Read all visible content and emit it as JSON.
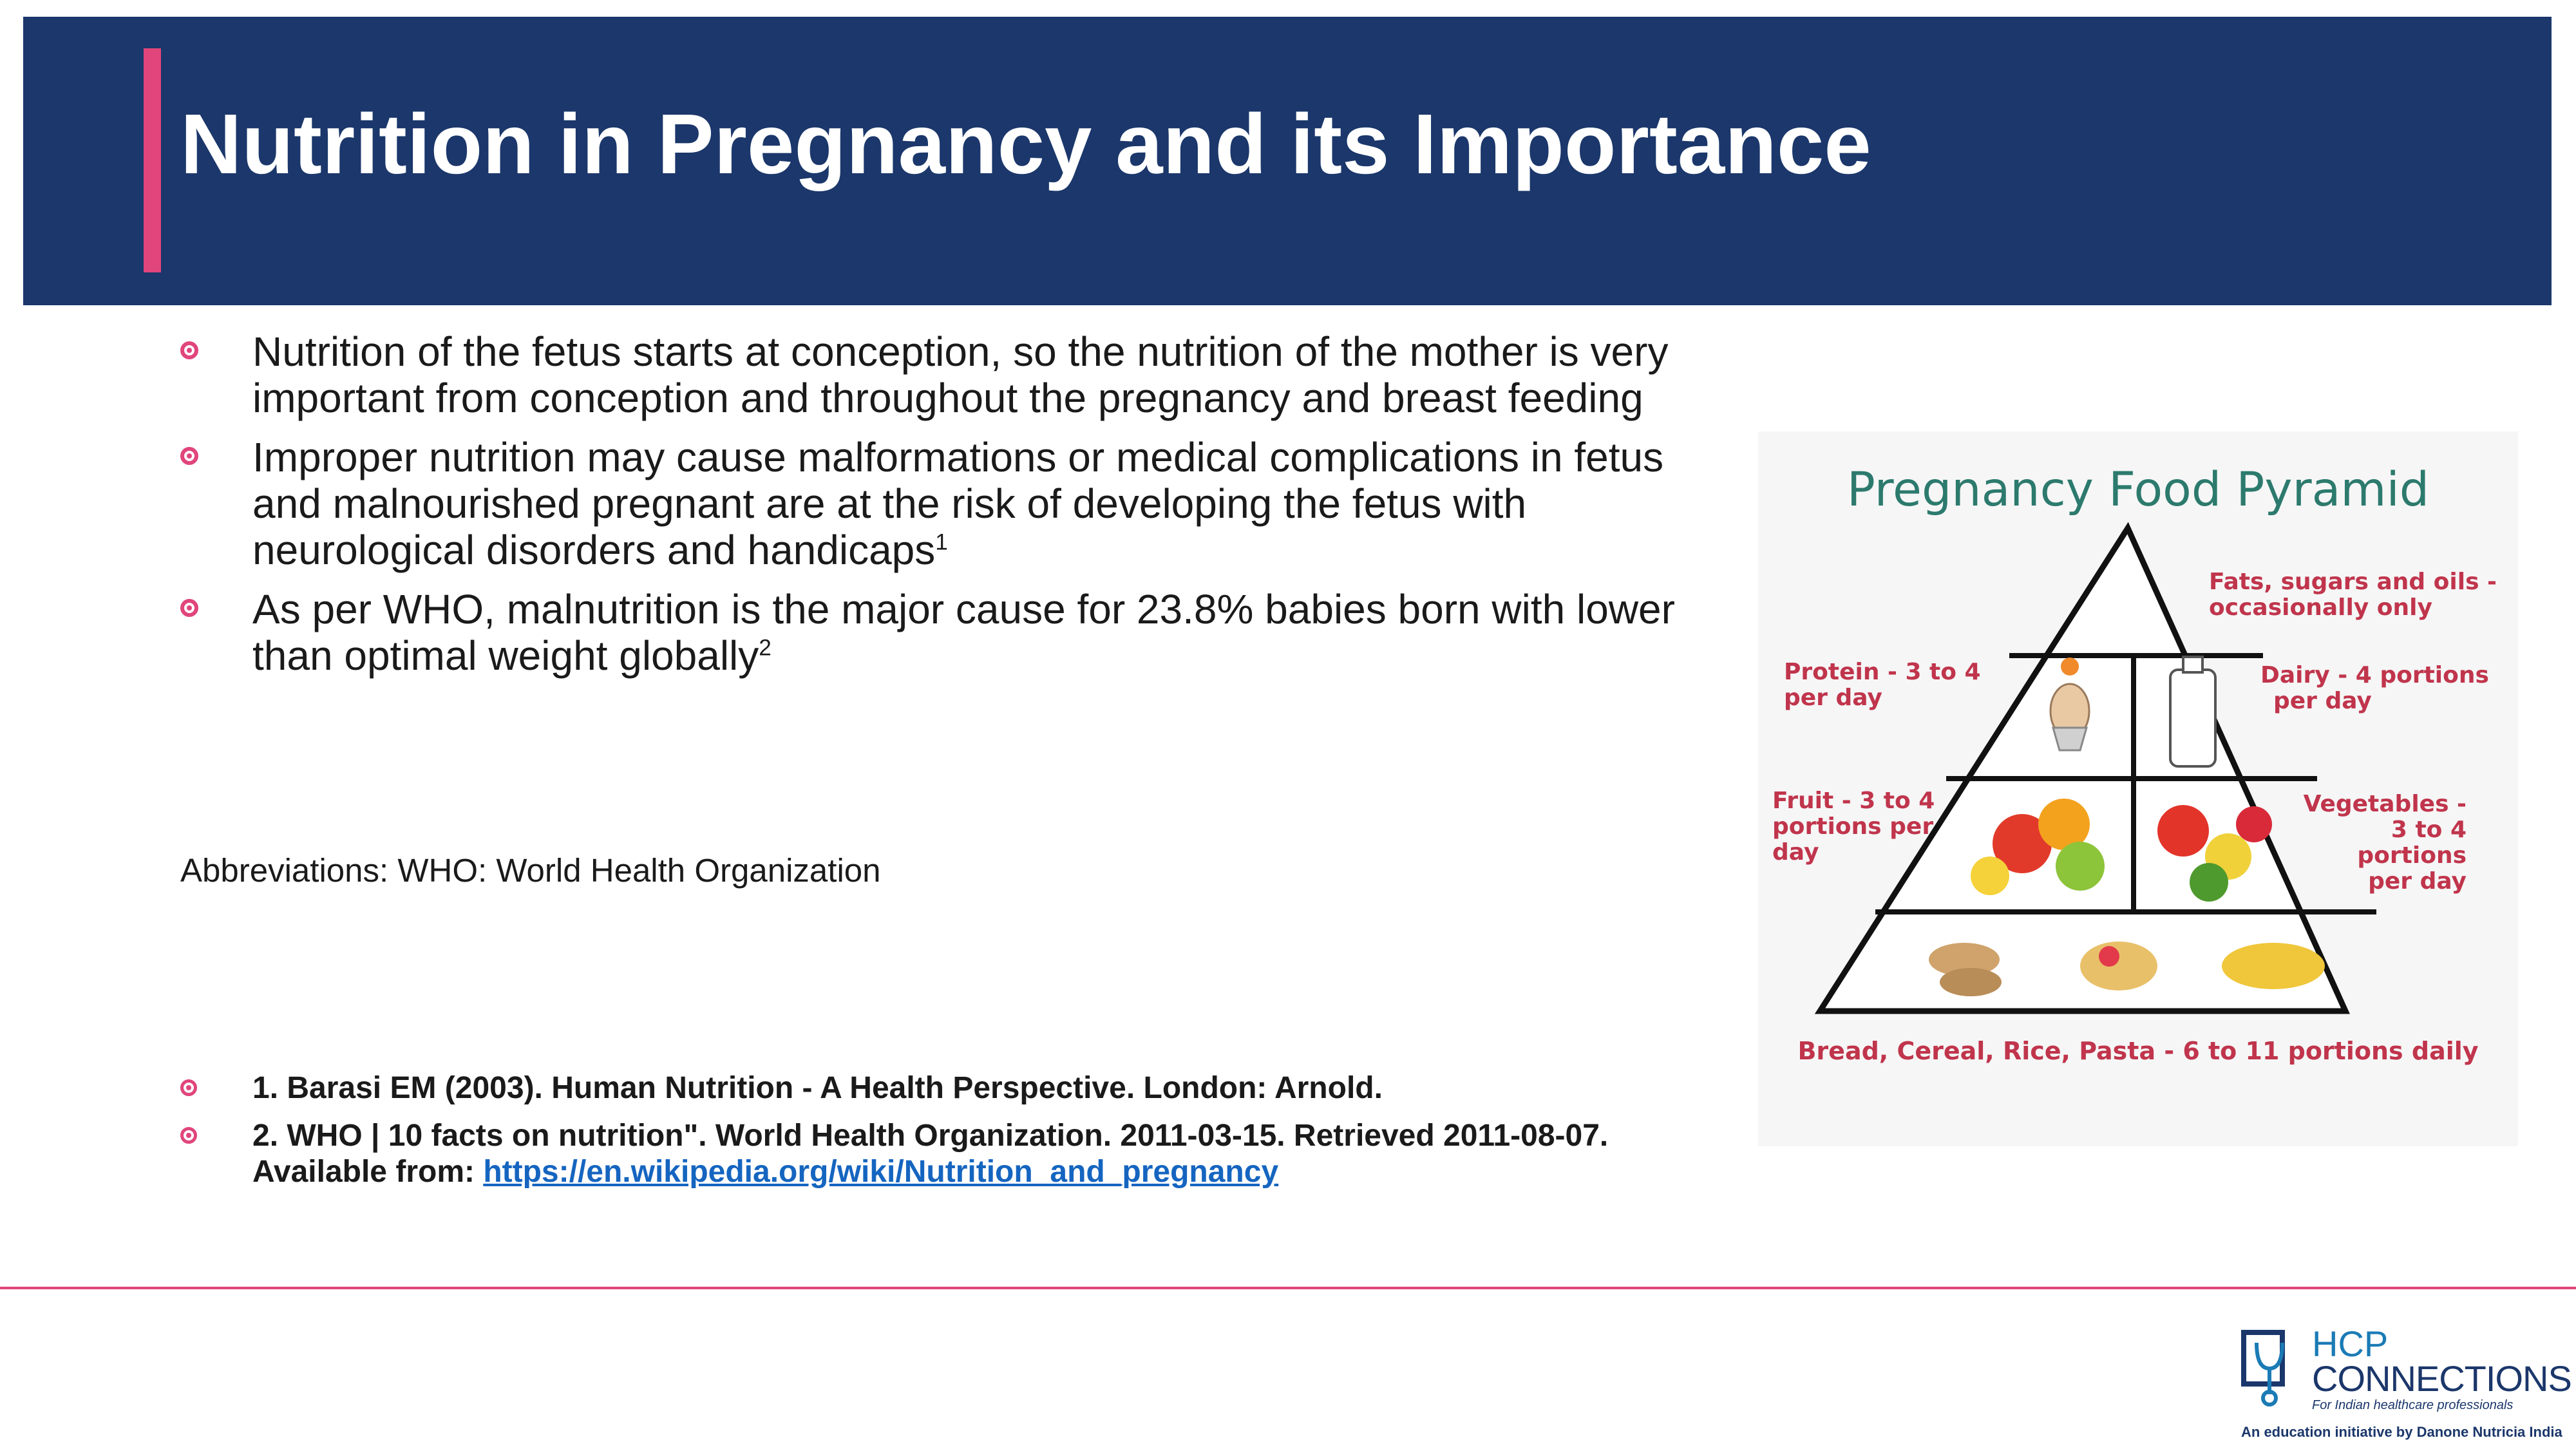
{
  "slide": {
    "title": "Nutrition in Pregnancy and its Importance",
    "bullets": [
      {
        "text": "Nutrition of the fetus starts at conception, so the nutrition of the mother is very important from conception and throughout the pregnancy and breast feeding",
        "sup": ""
      },
      {
        "text": "Improper nutrition may cause malformations or medical complications in fetus and malnourished pregnant are at the risk of developing the fetus with neurological disorders and handicaps",
        "sup": "1"
      },
      {
        "text": "As per WHO, malnutrition is the major cause for 23.8% babies born with lower than optimal weight globally",
        "sup": "2"
      }
    ],
    "abbreviations": "Abbreviations: WHO: World Health Organization",
    "references": [
      {
        "text": "1. Barasi EM (2003). Human Nutrition - A Health Perspective. London: Arnold.",
        "prefix": "",
        "link": ""
      },
      {
        "text": "2. WHO | 10 facts on nutrition\". World Health Organization. 2011-03-15. Retrieved 2011-08-07.",
        "prefix": "Available from: ",
        "link": "https://en.wikipedia.org/wiki/Nutrition_and_pregnancy"
      }
    ]
  },
  "pyramid": {
    "title": "Pregnancy Food Pyramid",
    "fats": [
      "Fats, sugars and oils -",
      "occasionally only"
    ],
    "protein": [
      "Protein - 3 to 4",
      "per day"
    ],
    "dairy": [
      "Dairy - 4 portions",
      "per day"
    ],
    "fruit": [
      "Fruit - 3 to 4",
      "portions per",
      "day"
    ],
    "vegetables": [
      "Vegetables -",
      "3 to 4",
      "portions",
      "per day"
    ],
    "base": "Bread, Cereal, Rice, Pasta - 6 to 11 portions daily"
  },
  "logo": {
    "line1": "HCP",
    "line2": "CONNECTIONS",
    "line3": "For Indian healthcare professionals",
    "line4": "An education initiative by Danone Nutricia India"
  },
  "colors": {
    "header_bg": "#1b376b",
    "accent": "#e0457b",
    "link": "#1565c0",
    "pyramid_title": "#2c7a6d",
    "pyramid_label": "#c0354c"
  }
}
